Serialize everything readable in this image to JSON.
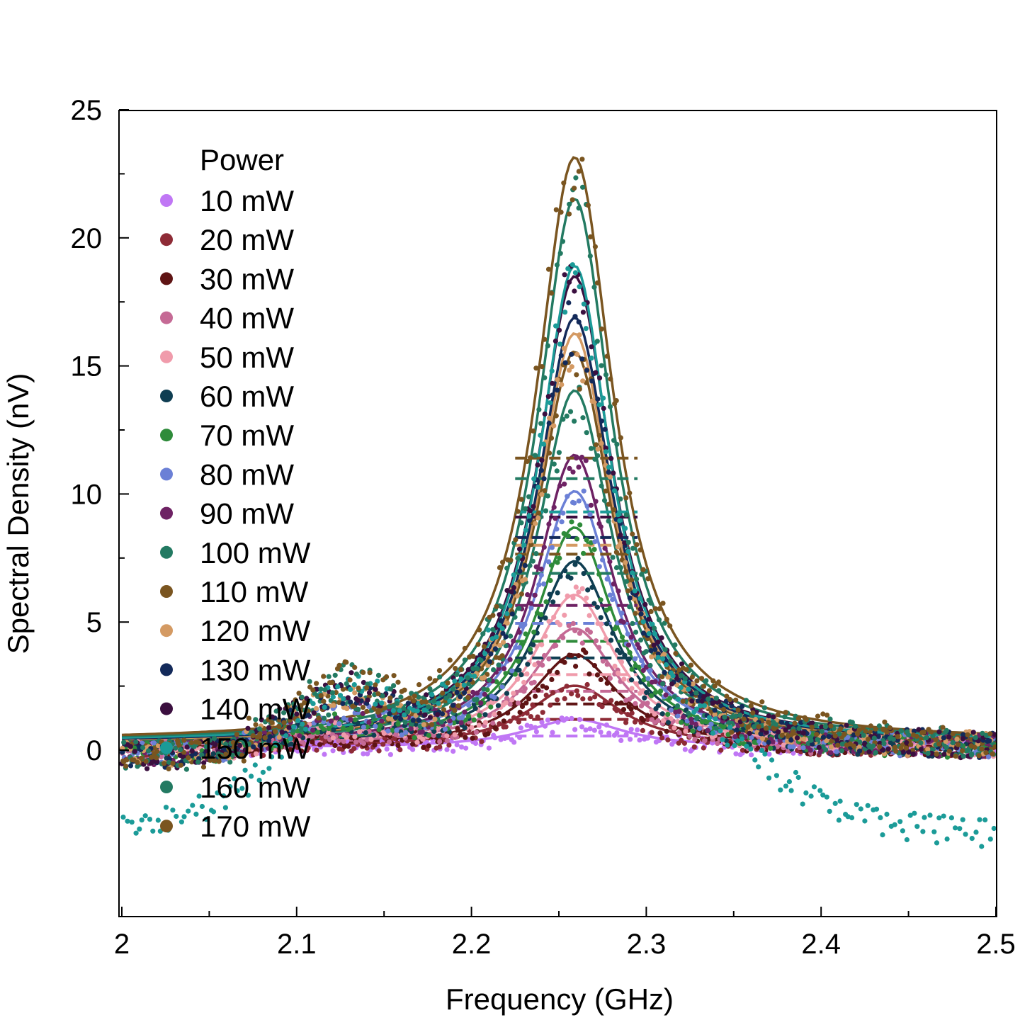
{
  "chart_data": {
    "type": "scatter",
    "title": "",
    "xlabel": "Frequency (GHz)",
    "ylabel": "Spectral Density (nV)",
    "xlim": [
      2.0,
      2.5
    ],
    "ylim": [
      -6.5,
      25
    ],
    "x_ticks": [
      {
        "value": 2.0,
        "label": "2"
      },
      {
        "value": 2.1,
        "label": "2.1"
      },
      {
        "value": 2.2,
        "label": "2.2"
      },
      {
        "value": 2.3,
        "label": "2.3"
      },
      {
        "value": 2.4,
        "label": "2.4"
      },
      {
        "value": 2.5,
        "label": "2.5"
      }
    ],
    "y_ticks": [
      {
        "value": 0,
        "label": "0"
      },
      {
        "value": 5,
        "label": "5"
      },
      {
        "value": 10,
        "label": "10"
      },
      {
        "value": 15,
        "label": "15"
      },
      {
        "value": 20,
        "label": "20"
      },
      {
        "value": 25,
        "label": "25"
      }
    ],
    "grid": false,
    "legend_title": "Power",
    "legend_position": "top-left",
    "center_frequency_ghz": 2.259,
    "series": [
      {
        "name": "10 mW",
        "color": "#c077f5",
        "peak_fit": 1.1,
        "half_width_ghz": 0.034
      },
      {
        "name": "20 mW",
        "color": "#8e2b36",
        "peak_fit": 2.4,
        "half_width_ghz": 0.032
      },
      {
        "name": "30 mW",
        "color": "#5f1414",
        "peak_fit": 3.6,
        "half_width_ghz": 0.03
      },
      {
        "name": "40 mW",
        "color": "#c56a95",
        "peak_fit": 4.6,
        "half_width_ghz": 0.03
      },
      {
        "name": "50 mW",
        "color": "#f09bab",
        "peak_fit": 5.9,
        "half_width_ghz": 0.029
      },
      {
        "name": "60 mW",
        "color": "#0f3e52",
        "peak_fit": 7.2,
        "half_width_ghz": 0.028
      },
      {
        "name": "70 mW",
        "color": "#2e8b3a",
        "peak_fit": 8.5,
        "half_width_ghz": 0.027
      },
      {
        "name": "80 mW",
        "color": "#6b80d6",
        "peak_fit": 9.9,
        "half_width_ghz": 0.027
      },
      {
        "name": "90 mW",
        "color": "#6e2264",
        "peak_fit": 11.3,
        "half_width_ghz": 0.026
      },
      {
        "name": "100 mW",
        "color": "#237a62",
        "peak_fit": 13.8,
        "half_width_ghz": 0.026
      },
      {
        "name": "110 mW",
        "color": "#7a5520",
        "peak_fit": 15.3,
        "half_width_ghz": 0.026
      },
      {
        "name": "120 mW",
        "color": "#d49a63",
        "peak_fit": 16.0,
        "half_width_ghz": 0.026
      },
      {
        "name": "130 mW",
        "color": "#132a5a",
        "peak_fit": 16.6,
        "half_width_ghz": 0.026
      },
      {
        "name": "140 mW",
        "color": "#3b0f3f",
        "peak_fit": 18.2,
        "half_width_ghz": 0.026
      },
      {
        "name": "150 mW",
        "color": "#1b9b98",
        "peak_fit": 18.6,
        "half_width_ghz": 0.025
      },
      {
        "name": "160 mW",
        "color": "#237a62",
        "peak_fit": 21.2,
        "half_width_ghz": 0.026
      },
      {
        "name": "170 mW",
        "color": "#7a5520",
        "peak_fit": 22.8,
        "half_width_ghz": 0.027
      }
    ]
  }
}
